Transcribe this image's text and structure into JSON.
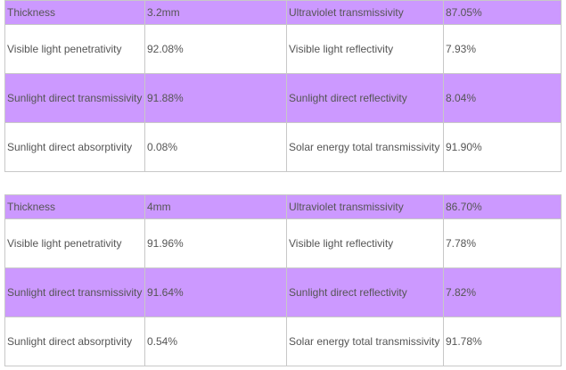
{
  "tables": [
    {
      "rows": [
        [
          "Thickness",
          "3.2mm",
          "Ultraviolet transmissivity",
          "87.05%"
        ],
        [
          "Visible light penetrativity",
          "92.08%",
          "Visible light reflectivity",
          "7.93%"
        ],
        [
          "Sunlight direct transmissivity",
          "91.88%",
          "Sunlight direct reflectivity",
          "8.04%"
        ],
        [
          "Sunlight direct absorptivity",
          "0.08%",
          "Solar energy total transmissivity",
          "91.90%"
        ]
      ]
    },
    {
      "rows": [
        [
          "Thickness",
          "4mm",
          "Ultraviolet transmissivity",
          "86.70%"
        ],
        [
          "Visible light penetrativity",
          "91.96%",
          "Visible light reflectivity",
          "7.78%"
        ],
        [
          "Sunlight direct transmissivity",
          "91.64%",
          "Sunlight direct reflectivity",
          "7.82%"
        ],
        [
          "Sunlight direct absorptivity",
          "0.54%",
          "Solar energy total transmissivity",
          "91.78%"
        ]
      ]
    }
  ]
}
